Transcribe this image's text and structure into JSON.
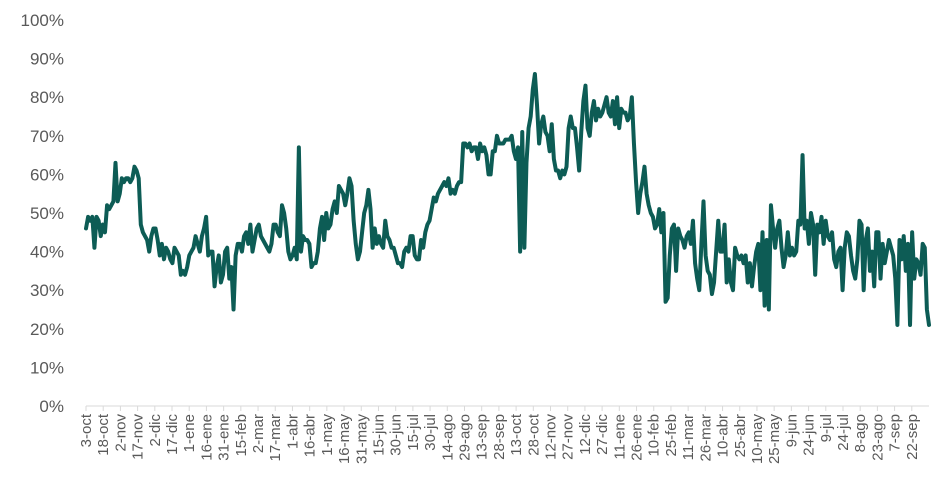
{
  "chart_data": {
    "type": "line",
    "title": "",
    "xlabel": "",
    "ylabel": "",
    "ylim": [
      0,
      100
    ],
    "y_unit": "%",
    "yticks": [
      0,
      10,
      20,
      30,
      40,
      50,
      60,
      70,
      80,
      90,
      100
    ],
    "ytick_labels": [
      "0%",
      "10%",
      "20%",
      "30%",
      "40%",
      "50%",
      "60%",
      "70%",
      "80%",
      "90%",
      "100%"
    ],
    "grid": false,
    "legend": "none",
    "colors": {
      "line": "#0d5c55",
      "axis": "#d9d9d9",
      "text": "#595959"
    },
    "x_tick_labels": [
      "3-oct",
      "18-oct",
      "2-nov",
      "17-nov",
      "2-dic",
      "17-dic",
      "1-ene",
      "16-ene",
      "31-ene",
      "15-feb",
      "2-mar",
      "17-mar",
      "1-abr",
      "16-abr",
      "1-may",
      "16-may",
      "31-may",
      "15-jun",
      "30-jun",
      "15-jul",
      "30-jul",
      "14-ago",
      "29-ago",
      "13-sep",
      "28-sep",
      "13-oct",
      "28-oct",
      "12-nov",
      "27-nov",
      "12-dic",
      "27-dic",
      "11-ene",
      "26-ene",
      "10-feb",
      "25-feb",
      "11-mar",
      "26-mar",
      "10-abr",
      "25-abr",
      "10-may",
      "25-may",
      "9-jun",
      "24-jun",
      "9-jul",
      "24-jul",
      "8-ago",
      "23-ago",
      "7-sep",
      "22-sep"
    ],
    "series": [
      {
        "values": [
          46,
          49,
          48,
          49,
          41,
          49,
          48,
          44,
          47,
          45,
          52,
          51,
          52,
          53,
          63,
          53,
          55,
          59,
          58,
          59,
          59,
          58,
          59,
          62,
          61,
          59,
          47,
          45,
          44,
          43,
          40,
          44,
          46,
          46,
          43,
          39,
          42,
          38,
          41,
          40,
          38,
          37,
          41,
          40,
          39,
          34,
          35,
          34,
          36,
          39,
          40,
          41,
          44,
          42,
          40,
          44,
          46,
          49,
          39,
          40,
          40,
          31,
          36,
          39,
          32,
          34,
          40,
          41,
          33,
          36,
          25,
          39,
          42,
          42,
          40,
          44,
          45,
          42,
          47,
          40,
          43,
          46,
          47,
          44,
          43,
          42,
          41,
          40,
          42,
          47,
          47,
          45,
          44,
          52,
          50,
          46,
          40,
          38,
          39,
          41,
          38,
          67,
          40,
          44,
          43,
          43,
          42,
          36,
          37,
          37,
          40,
          46,
          49,
          43,
          50,
          46,
          47,
          51,
          53,
          50,
          57,
          56,
          55,
          52,
          55,
          59,
          57,
          48,
          42,
          38,
          40,
          45,
          50,
          52,
          56,
          51,
          41,
          46,
          42,
          44,
          42,
          41,
          48,
          44,
          43,
          41,
          41,
          39,
          37,
          37,
          36,
          40,
          41,
          40,
          44,
          44,
          39,
          38,
          38,
          43,
          41,
          45,
          47,
          48,
          51,
          54,
          53,
          55,
          56,
          57,
          58,
          57,
          59,
          55,
          56,
          55,
          57,
          58,
          58,
          68,
          68,
          67,
          68,
          66,
          67,
          67,
          64,
          68,
          66,
          67,
          65,
          60,
          60,
          66,
          66,
          70,
          68,
          68,
          68,
          69,
          69,
          69,
          70,
          66,
          64,
          67,
          40,
          71,
          41,
          63,
          72,
          75,
          82,
          86,
          78,
          68,
          73,
          75,
          71,
          70,
          66,
          73,
          64,
          61,
          61,
          59,
          61,
          60,
          62,
          72,
          75,
          72,
          72,
          67,
          61,
          71,
          79,
          83,
          72,
          70,
          76,
          79,
          74,
          77,
          75,
          76,
          78,
          80,
          76,
          75,
          79,
          73,
          80,
          72,
          77,
          76,
          76,
          74,
          75,
          80,
          68,
          58,
          50,
          55,
          58,
          62,
          55,
          52,
          50,
          49,
          46,
          47,
          51,
          45,
          50,
          27,
          28,
          39,
          46,
          47,
          35,
          46,
          44,
          43,
          41,
          44,
          45,
          42,
          48,
          37,
          33,
          30,
          42,
          53,
          39,
          35,
          34,
          29,
          32,
          40,
          48,
          40,
          40,
          47,
          32,
          38,
          32,
          30,
          41,
          39,
          38,
          39,
          37,
          39,
          32,
          37,
          31,
          36,
          40,
          42,
          30,
          45,
          26,
          43,
          25,
          52,
          46,
          41,
          46,
          48,
          41,
          36,
          39,
          45,
          39,
          41,
          39,
          40,
          48,
          47,
          65,
          46,
          48,
          42,
          50,
          47,
          34,
          47,
          45,
          49,
          42,
          48,
          44,
          43,
          45,
          38,
          36,
          40,
          41,
          30,
          41,
          45,
          44,
          39,
          35,
          33,
          38,
          48,
          47,
          30,
          43,
          46,
          35,
          40,
          31,
          45,
          45,
          33,
          42,
          37,
          40,
          43,
          41,
          39,
          33,
          21,
          43,
          38,
          44,
          35,
          42,
          21,
          45,
          33,
          38,
          37,
          34,
          42,
          41,
          25,
          21
        ],
        "color": "#0d5c55"
      }
    ]
  }
}
